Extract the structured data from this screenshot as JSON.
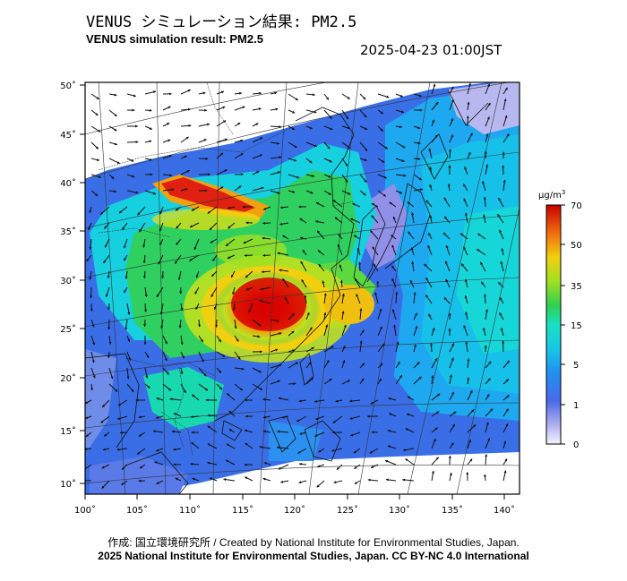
{
  "title_jp": "VENUS シミュレーション結果: PM2.5",
  "title_en": "VENUS simulation result: PM2.5",
  "timestamp": "2025-04-23 01:00JST",
  "credit": "作成: 国立環境研究所 / Created by National Institute for Environmental Studies, Japan.",
  "copyright": "2025 National Institute for Environmental Studies, Japan. CC BY-NC 4.0 International",
  "map": {
    "lon_ticks": [
      "100˚",
      "105˚",
      "110˚",
      "115˚",
      "120˚",
      "125˚",
      "130˚",
      "135˚",
      "140˚"
    ],
    "lat_ticks": [
      "50˚",
      "45˚",
      "40˚",
      "35˚",
      "30˚",
      "25˚",
      "20˚",
      "15˚",
      "10˚"
    ]
  },
  "colorbar": {
    "unit_main": "μg/m",
    "unit_sup": "3",
    "labels": [
      "70",
      "50",
      "35",
      "15",
      "5",
      "1",
      "0"
    ],
    "colors": [
      "#e8e8f8",
      "#8c8ce8",
      "#3d6fe8",
      "#1ea8f0",
      "#14e0d8",
      "#22d060",
      "#8ce020",
      "#f0e010",
      "#f09010",
      "#e83010",
      "#c80000"
    ]
  }
}
